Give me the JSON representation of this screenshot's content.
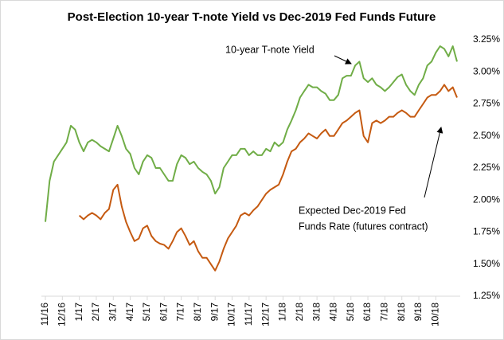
{
  "chart_data": {
    "type": "line",
    "title": "Post-Election 10-year T-note Yield vs Dec-2019 Fed Funds Future",
    "categories": [
      "11/16",
      null,
      null,
      null,
      "12/16",
      null,
      null,
      null,
      "1/17",
      null,
      null,
      null,
      "2/17",
      null,
      null,
      null,
      "3/17",
      null,
      null,
      null,
      "4/17",
      null,
      null,
      null,
      "5/17",
      null,
      null,
      null,
      "6/17",
      null,
      null,
      null,
      "7/17",
      null,
      null,
      null,
      "8/17",
      null,
      null,
      null,
      "9/17",
      null,
      null,
      null,
      "10/17",
      null,
      null,
      null,
      "11/17",
      null,
      null,
      null,
      "12/17",
      null,
      null,
      null,
      "1/18",
      null,
      null,
      null,
      "2/18",
      null,
      null,
      null,
      "3/18",
      null,
      null,
      null,
      "4/18",
      null,
      null,
      null,
      "5/18",
      null,
      null,
      null,
      "6/18",
      null,
      null,
      null,
      "7/18",
      null,
      null,
      null,
      "8/18",
      null,
      null,
      null,
      "9/18",
      null,
      null,
      null,
      "10/18",
      null,
      null,
      null,
      null,
      null
    ],
    "series": [
      {
        "name": "10-year T-note Yield",
        "color": "#70ad47",
        "values": [
          1.83,
          2.15,
          2.3,
          2.35,
          2.4,
          2.45,
          2.58,
          2.55,
          2.45,
          2.38,
          2.45,
          2.47,
          2.45,
          2.42,
          2.4,
          2.38,
          2.48,
          2.58,
          2.5,
          2.4,
          2.36,
          2.25,
          2.2,
          2.3,
          2.35,
          2.33,
          2.25,
          2.25,
          2.2,
          2.15,
          2.15,
          2.28,
          2.35,
          2.33,
          2.28,
          2.3,
          2.25,
          2.22,
          2.2,
          2.15,
          2.05,
          2.1,
          2.25,
          2.3,
          2.35,
          2.35,
          2.4,
          2.4,
          2.35,
          2.38,
          2.35,
          2.35,
          2.4,
          2.38,
          2.45,
          2.42,
          2.45,
          2.55,
          2.62,
          2.7,
          2.8,
          2.85,
          2.9,
          2.88,
          2.88,
          2.85,
          2.83,
          2.78,
          2.78,
          2.82,
          2.95,
          2.97,
          2.97,
          3.05,
          3.08,
          2.95,
          2.92,
          2.95,
          2.9,
          2.88,
          2.85,
          2.88,
          2.92,
          2.96,
          2.98,
          2.9,
          2.85,
          2.82,
          2.9,
          2.95,
          3.05,
          3.08,
          3.15,
          3.2,
          3.18,
          3.12,
          3.2,
          3.08
        ]
      },
      {
        "name": "Expected Dec-2019 Fed Funds Rate (futures contract)",
        "color": "#c55a11",
        "values": [
          null,
          null,
          null,
          null,
          null,
          null,
          null,
          null,
          1.88,
          1.85,
          1.88,
          1.9,
          1.88,
          1.85,
          1.9,
          1.93,
          2.08,
          2.12,
          1.95,
          1.83,
          1.75,
          1.68,
          1.7,
          1.78,
          1.8,
          1.72,
          1.68,
          1.66,
          1.65,
          1.62,
          1.68,
          1.75,
          1.78,
          1.72,
          1.65,
          1.68,
          1.6,
          1.55,
          1.55,
          1.5,
          1.45,
          1.52,
          1.62,
          1.7,
          1.75,
          1.8,
          1.88,
          1.9,
          1.88,
          1.92,
          1.95,
          2.0,
          2.05,
          2.08,
          2.1,
          2.12,
          2.2,
          2.3,
          2.38,
          2.4,
          2.45,
          2.48,
          2.52,
          2.5,
          2.48,
          2.52,
          2.55,
          2.5,
          2.5,
          2.55,
          2.6,
          2.62,
          2.65,
          2.68,
          2.7,
          2.5,
          2.45,
          2.6,
          2.62,
          2.6,
          2.62,
          2.65,
          2.65,
          2.68,
          2.7,
          2.68,
          2.65,
          2.65,
          2.7,
          2.75,
          2.8,
          2.82,
          2.82,
          2.85,
          2.9,
          2.85,
          2.88,
          2.8
        ]
      }
    ],
    "ylim": [
      1.25,
      3.25
    ],
    "yticks": [
      {
        "value": 1.25,
        "label": "1.25%"
      },
      {
        "value": 1.5,
        "label": "1.50%"
      },
      {
        "value": 1.75,
        "label": "1.75%"
      },
      {
        "value": 2,
        "label": "2.00%"
      },
      {
        "value": 2.25,
        "label": "2.25%"
      },
      {
        "value": 2.5,
        "label": "2.50%"
      },
      {
        "value": 2.75,
        "label": "2.75%"
      },
      {
        "value": 3,
        "label": "3.00%"
      },
      {
        "value": 3.25,
        "label": "3.25%"
      }
    ],
    "grid": false,
    "annotations": [
      {
        "text": "10-year T-note Yield"
      },
      {
        "lines": [
          "Expected Dec-2019 Fed",
          "Funds Rate (futures contract)"
        ]
      }
    ]
  }
}
